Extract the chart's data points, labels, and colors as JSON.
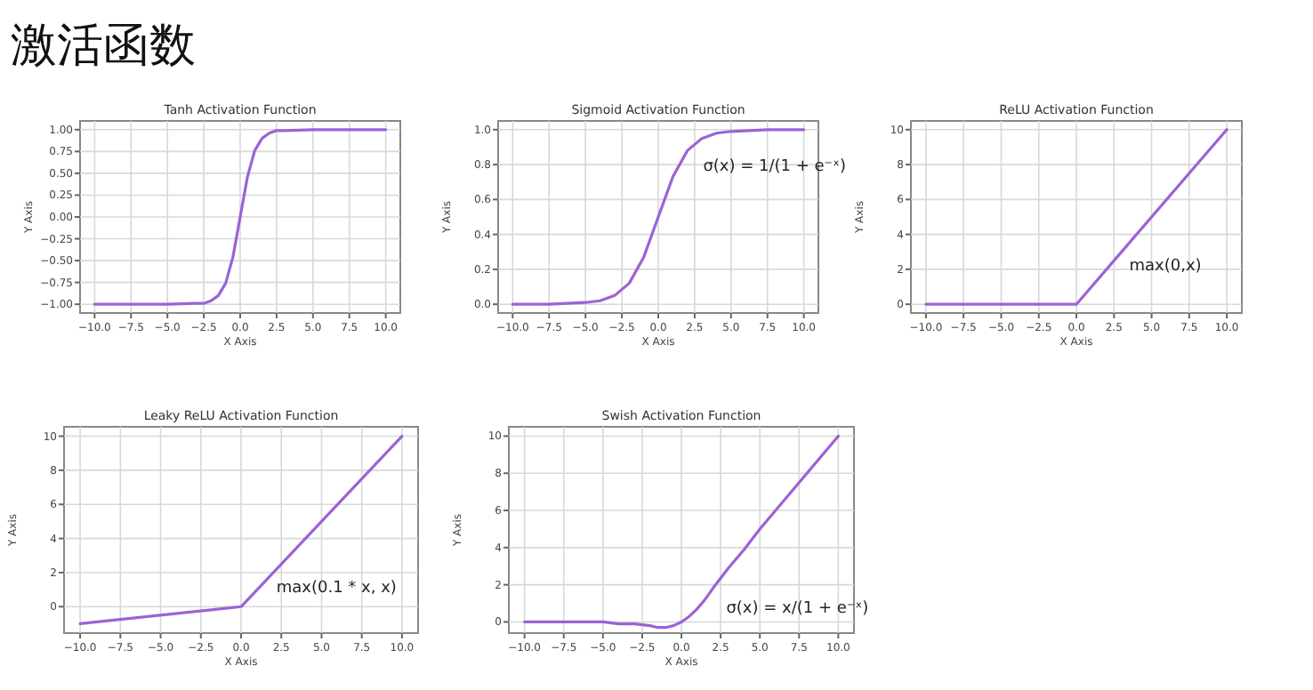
{
  "chart_data": [
    {
      "type": "line",
      "title": "Tanh Activation Function",
      "xlabel": "X Axis",
      "ylabel": "Y Axis",
      "annotations": [
        "激活函数"
      ],
      "x": [
        -10,
        -5,
        -3,
        -2.5,
        -2,
        -1.5,
        -1,
        -0.5,
        0,
        0.5,
        1,
        1.5,
        2,
        2.5,
        3,
        5,
        10
      ],
      "series": [
        {
          "color": "#9b63d6",
          "values": [
            -1,
            -1,
            -0.99,
            -0.99,
            -0.96,
            -0.9,
            -0.76,
            -0.46,
            0,
            0.46,
            0.76,
            0.9,
            0.96,
            0.99,
            0.99,
            1,
            1
          ]
        }
      ],
      "xlim": [
        -11,
        11
      ],
      "ylim": [
        -1.1,
        1.1
      ],
      "xticks": [
        {
          "value": -10,
          "label": "−10.0"
        },
        {
          "value": -7.5,
          "label": "−7.5"
        },
        {
          "value": -5,
          "label": "−5.0"
        },
        {
          "value": -2.5,
          "label": "−2.5"
        },
        {
          "value": 0,
          "label": "0.0"
        },
        {
          "value": 2.5,
          "label": "2.5"
        },
        {
          "value": 5,
          "label": "5.0"
        },
        {
          "value": 7.5,
          "label": "7.5"
        },
        {
          "value": 10,
          "label": "10.0"
        }
      ],
      "yticks": [
        {
          "value": -1,
          "label": "−1.00"
        },
        {
          "value": -0.75,
          "label": "−0.75"
        },
        {
          "value": -0.5,
          "label": "−0.50"
        },
        {
          "value": -0.25,
          "label": "−0.25"
        },
        {
          "value": 0,
          "label": "0.00"
        },
        {
          "value": 0.25,
          "label": "0.25"
        },
        {
          "value": 0.5,
          "label": "0.50"
        },
        {
          "value": 0.75,
          "label": "0.75"
        },
        {
          "value": 1,
          "label": "1.00"
        }
      ],
      "grid": true,
      "marker": "none",
      "line_style": "solid"
    },
    {
      "type": "line",
      "title": "Sigmoid Activation Function",
      "xlabel": "X Axis",
      "ylabel": "Y Axis",
      "annotations": [
        "σ(x) = 1/(1 + e⁻ˣ)"
      ],
      "x": [
        -10,
        -7.5,
        -5,
        -4,
        -3,
        -2,
        -1,
        0,
        1,
        2,
        3,
        4,
        5,
        7.5,
        10
      ],
      "series": [
        {
          "color": "#9b63d6",
          "values": [
            0,
            0,
            0.01,
            0.02,
            0.05,
            0.12,
            0.27,
            0.5,
            0.73,
            0.88,
            0.95,
            0.98,
            0.99,
            1,
            1
          ]
        }
      ],
      "xlim": [
        -11,
        11
      ],
      "ylim": [
        -0.05,
        1.05
      ],
      "xticks": [
        {
          "value": -10,
          "label": "−10.0"
        },
        {
          "value": -7.5,
          "label": "−7.5"
        },
        {
          "value": -5,
          "label": "−5.0"
        },
        {
          "value": -2.5,
          "label": "−2.5"
        },
        {
          "value": 0,
          "label": "0.0"
        },
        {
          "value": 2.5,
          "label": "2.5"
        },
        {
          "value": 5,
          "label": "5.0"
        },
        {
          "value": 7.5,
          "label": "7.5"
        },
        {
          "value": 10,
          "label": "10.0"
        }
      ],
      "yticks": [
        {
          "value": 0,
          "label": "0.0"
        },
        {
          "value": 0.2,
          "label": "0.2"
        },
        {
          "value": 0.4,
          "label": "0.4"
        },
        {
          "value": 0.6,
          "label": "0.6"
        },
        {
          "value": 0.8,
          "label": "0.8"
        },
        {
          "value": 1,
          "label": "1.0"
        }
      ],
      "grid": true,
      "marker": "none",
      "line_style": "solid"
    },
    {
      "type": "line",
      "title": "ReLU Activation Function",
      "xlabel": "X Axis",
      "ylabel": "Y Axis",
      "annotations": [
        "max(0,x)"
      ],
      "x": [
        -10,
        0,
        10
      ],
      "series": [
        {
          "color": "#9b63d6",
          "values": [
            0,
            0,
            10
          ]
        }
      ],
      "xlim": [
        -11,
        11
      ],
      "ylim": [
        -0.5,
        10.5
      ],
      "xticks": [
        {
          "value": -10,
          "label": "−10.0"
        },
        {
          "value": -7.5,
          "label": "−7.5"
        },
        {
          "value": -5,
          "label": "−5.0"
        },
        {
          "value": -2.5,
          "label": "−2.5"
        },
        {
          "value": 0,
          "label": "0.0"
        },
        {
          "value": 2.5,
          "label": "2.5"
        },
        {
          "value": 5,
          "label": "5.0"
        },
        {
          "value": 7.5,
          "label": "7.5"
        },
        {
          "value": 10,
          "label": "10.0"
        }
      ],
      "yticks": [
        {
          "value": 0,
          "label": "0"
        },
        {
          "value": 2,
          "label": "2"
        },
        {
          "value": 4,
          "label": "4"
        },
        {
          "value": 6,
          "label": "6"
        },
        {
          "value": 8,
          "label": "8"
        },
        {
          "value": 10,
          "label": "10"
        }
      ],
      "grid": true,
      "marker": "none",
      "line_style": "solid"
    },
    {
      "type": "line",
      "title": "Leaky ReLU Activation Function",
      "xlabel": "X Axis",
      "ylabel": "Y Axis",
      "annotations": [
        "max(0.1 * x, x)"
      ],
      "x": [
        -10,
        0,
        10
      ],
      "series": [
        {
          "color": "#9b63d6",
          "values": [
            -1,
            0,
            10
          ]
        }
      ],
      "xlim": [
        -11,
        11
      ],
      "ylim": [
        -1.55,
        10.55
      ],
      "xticks": [
        {
          "value": -10,
          "label": "−10.0"
        },
        {
          "value": -7.5,
          "label": "−7.5"
        },
        {
          "value": -5,
          "label": "−5.0"
        },
        {
          "value": -2.5,
          "label": "−2.5"
        },
        {
          "value": 0,
          "label": "0.0"
        },
        {
          "value": 2.5,
          "label": "2.5"
        },
        {
          "value": 5,
          "label": "5.0"
        },
        {
          "value": 7.5,
          "label": "7.5"
        },
        {
          "value": 10,
          "label": "10.0"
        }
      ],
      "yticks": [
        {
          "value": 0,
          "label": "0"
        },
        {
          "value": 2,
          "label": "2"
        },
        {
          "value": 4,
          "label": "4"
        },
        {
          "value": 6,
          "label": "6"
        },
        {
          "value": 8,
          "label": "8"
        },
        {
          "value": 10,
          "label": "10"
        }
      ],
      "grid": true,
      "marker": "none",
      "line_style": "solid"
    },
    {
      "type": "line",
      "title": "Swish Activation Function",
      "xlabel": "X Axis",
      "ylabel": "Y Axis",
      "annotations": [
        "σ(x) = x/(1 + e⁻ˣ)"
      ],
      "x": [
        -10,
        -7.5,
        -5,
        -4,
        -3,
        -2,
        -1.5,
        -1,
        -0.5,
        0,
        0.5,
        1,
        1.5,
        2,
        3,
        4,
        5,
        7.5,
        10
      ],
      "series": [
        {
          "color": "#9b63d6",
          "values": [
            0,
            0,
            0,
            -0.1,
            -0.1,
            -0.2,
            -0.3,
            -0.3,
            -0.2,
            0,
            0.3,
            0.7,
            1.2,
            1.8,
            2.9,
            3.9,
            5,
            7.5,
            10
          ]
        }
      ],
      "xlim": [
        -11,
        11
      ],
      "ylim": [
        -0.6,
        10.5
      ],
      "xticks": [
        {
          "value": -10,
          "label": "−10.0"
        },
        {
          "value": -7.5,
          "label": "−7.5"
        },
        {
          "value": -5,
          "label": "−5.0"
        },
        {
          "value": -2.5,
          "label": "−2.5"
        },
        {
          "value": 0,
          "label": "0.0"
        },
        {
          "value": 2.5,
          "label": "2.5"
        },
        {
          "value": 5,
          "label": "5.0"
        },
        {
          "value": 7.5,
          "label": "7.5"
        },
        {
          "value": 10,
          "label": "10.0"
        }
      ],
      "yticks": [
        {
          "value": 0,
          "label": "0"
        },
        {
          "value": 2,
          "label": "2"
        },
        {
          "value": 4,
          "label": "4"
        },
        {
          "value": 6,
          "label": "6"
        },
        {
          "value": 8,
          "label": "8"
        },
        {
          "value": 10,
          "label": "10"
        }
      ],
      "grid": true,
      "marker": "none",
      "line_style": "solid"
    }
  ]
}
